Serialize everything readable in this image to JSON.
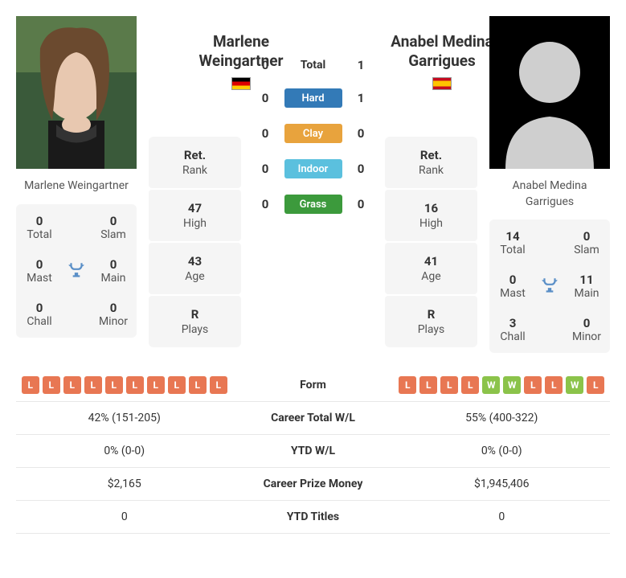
{
  "colors": {
    "loss": "#e87753",
    "win": "#8bc34a",
    "hard": "#337ab7",
    "clay": "#e8a33d",
    "indoor": "#5bc0de",
    "grass": "#3c9a3c",
    "trophy": "#5a8fc7",
    "box_bg": "#f5f5f5",
    "border": "#e8e8e8"
  },
  "flags": {
    "p1": {
      "country": "Germany",
      "stripes": [
        "#000000",
        "#dd0000",
        "#ffce00"
      ],
      "orientation": "horizontal"
    },
    "p2": {
      "country": "Spain",
      "stripes": [
        "#c60b1e",
        "#ffc400",
        "#c60b1e"
      ],
      "orientation": "horizontal",
      "ratios": [
        1,
        2,
        1
      ]
    }
  },
  "p1": {
    "name": "Marlene Weingartner",
    "name_lines": [
      "Marlene",
      "Weingartner"
    ],
    "titles": {
      "total": {
        "val": "0",
        "lbl": "Total"
      },
      "slam": {
        "val": "0",
        "lbl": "Slam"
      },
      "mast": {
        "val": "0",
        "lbl": "Mast"
      },
      "main": {
        "val": "0",
        "lbl": "Main"
      },
      "chall": {
        "val": "0",
        "lbl": "Chall"
      },
      "minor": {
        "val": "0",
        "lbl": "Minor"
      }
    },
    "stats": {
      "rank": {
        "val": "Ret.",
        "lbl": "Rank"
      },
      "high": {
        "val": "47",
        "lbl": "High"
      },
      "age": {
        "val": "43",
        "lbl": "Age"
      },
      "plays": {
        "val": "R",
        "lbl": "Plays"
      }
    },
    "form": [
      "L",
      "L",
      "L",
      "L",
      "L",
      "L",
      "L",
      "L",
      "L",
      "L"
    ],
    "career_wl": "42% (151-205)",
    "ytd_wl": "0% (0-0)",
    "prize": "$2,165",
    "ytd_titles": "0"
  },
  "p2": {
    "name": "Anabel Medina Garrigues",
    "name_lines": [
      "Anabel Medina",
      "Garrigues"
    ],
    "titles": {
      "total": {
        "val": "14",
        "lbl": "Total"
      },
      "slam": {
        "val": "0",
        "lbl": "Slam"
      },
      "mast": {
        "val": "0",
        "lbl": "Mast"
      },
      "main": {
        "val": "11",
        "lbl": "Main"
      },
      "chall": {
        "val": "3",
        "lbl": "Chall"
      },
      "minor": {
        "val": "0",
        "lbl": "Minor"
      }
    },
    "stats": {
      "rank": {
        "val": "Ret.",
        "lbl": "Rank"
      },
      "high": {
        "val": "16",
        "lbl": "High"
      },
      "age": {
        "val": "41",
        "lbl": "Age"
      },
      "plays": {
        "val": "R",
        "lbl": "Plays"
      }
    },
    "form": [
      "L",
      "L",
      "L",
      "L",
      "W",
      "W",
      "L",
      "L",
      "W",
      "L"
    ],
    "career_wl": "55% (400-322)",
    "ytd_wl": "0% (0-0)",
    "prize": "$1,945,406",
    "ytd_titles": "0"
  },
  "h2h": {
    "total": {
      "label": "Total",
      "p1": "0",
      "p2": "1"
    },
    "surfaces": [
      {
        "key": "hard",
        "label": "Hard",
        "p1": "0",
        "p2": "1",
        "color": "#337ab7"
      },
      {
        "key": "clay",
        "label": "Clay",
        "p1": "0",
        "p2": "0",
        "color": "#e8a33d"
      },
      {
        "key": "indoor",
        "label": "Indoor",
        "p1": "0",
        "p2": "0",
        "color": "#5bc0de"
      },
      {
        "key": "grass",
        "label": "Grass",
        "p1": "0",
        "p2": "0",
        "color": "#3c9a3c"
      }
    ]
  },
  "compare_rows": [
    {
      "key": "form",
      "label": "Form",
      "type": "form"
    },
    {
      "key": "career_wl",
      "label": "Career Total W/L",
      "type": "text"
    },
    {
      "key": "ytd_wl",
      "label": "YTD W/L",
      "type": "text"
    },
    {
      "key": "prize",
      "label": "Career Prize Money",
      "type": "text"
    },
    {
      "key": "ytd_titles",
      "label": "YTD Titles",
      "type": "text"
    }
  ]
}
